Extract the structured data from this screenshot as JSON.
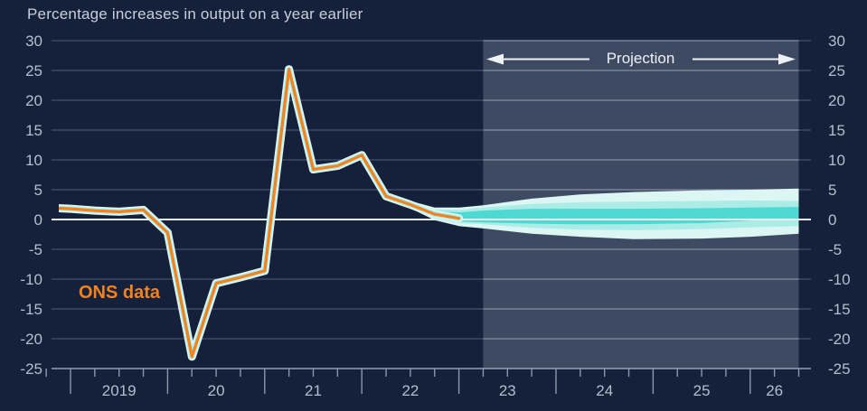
{
  "title": "Percentage increases in output on a year earlier",
  "labels": {
    "ons": "ONS data",
    "projection": "Projection"
  },
  "colors": {
    "background": "#15213a",
    "projection_region": "rgba(210,222,240,0.22)",
    "grid": "#46526c",
    "grid_in_projection": "rgba(240,245,250,0.38)",
    "zero_line": "#eef2f7",
    "axis_line": "#95a0b2",
    "tick_color": "#8d98aa",
    "axis_text": "#b4bfce",
    "title_text": "#c7cfdc",
    "ons_line": "#f5821e",
    "fan_outer": "#dbf6f3",
    "fan_mid": "#abece7",
    "fan_core": "#4ed9d2",
    "arrow": "#eef2f7"
  },
  "chart_data": {
    "type": "line",
    "title": "Percentage increases in output on a year earlier",
    "ylabel": "Percentage increase in output on a year earlier",
    "ylim": [
      -25,
      30
    ],
    "grid": true,
    "y_axis": {
      "ticks": [
        30,
        25,
        20,
        15,
        10,
        5,
        0,
        -5,
        -10,
        -15,
        -20,
        -25
      ],
      "sides": [
        "left",
        "right"
      ]
    },
    "x_axis": {
      "quarter_tick_start": 2018.75,
      "quarter_tick_end": 2026.5,
      "labels": [
        "2019",
        "20",
        "21",
        "22",
        "23",
        "24",
        "25",
        "26"
      ],
      "label_positions": [
        2019.5,
        2020.5,
        2021.5,
        2022.5,
        2023.5,
        2024.5,
        2025.5,
        2026.25
      ]
    },
    "series": [
      {
        "name": "ONS data",
        "x": [
          2018.75,
          2019.0,
          2019.25,
          2019.5,
          2019.75,
          2020.0,
          2020.25,
          2020.5,
          2020.75,
          2021.0,
          2021.25,
          2021.5,
          2021.75,
          2022.0,
          2022.25,
          2022.5,
          2022.75,
          2023.0
        ],
        "values": [
          2.0,
          1.8,
          1.5,
          1.3,
          1.6,
          -2.2,
          -23.0,
          -10.7,
          -9.7,
          -8.6,
          25.2,
          8.4,
          9.0,
          10.8,
          3.9,
          2.5,
          0.9,
          0.2
        ]
      }
    ],
    "projection": {
      "label": "Projection",
      "start_year": 2023.25,
      "end_year": 2026.5,
      "fan": {
        "x": [
          2022.5,
          2022.75,
          2023.0,
          2023.25,
          2023.75,
          2024.25,
          2024.8,
          2025.5,
          2026.0,
          2026.5
        ],
        "outer_top": [
          3.1,
          2.0,
          2.0,
          2.4,
          3.5,
          4.2,
          4.6,
          4.9,
          5.0,
          5.2
        ],
        "outer_bottom": [
          1.9,
          -0.1,
          -1.1,
          -1.5,
          -2.4,
          -2.9,
          -3.3,
          -3.2,
          -2.9,
          -2.4
        ],
        "mid_top": [
          2.9,
          1.7,
          1.6,
          2.0,
          2.6,
          2.9,
          3.0,
          3.1,
          3.2,
          3.1
        ],
        "mid_bottom": [
          2.1,
          0.1,
          -0.6,
          -0.8,
          -1.4,
          -1.7,
          -1.8,
          -1.6,
          -1.3,
          -1.1
        ],
        "core_top": [
          2.75,
          1.4,
          1.2,
          1.5,
          1.8,
          1.8,
          1.8,
          1.9,
          2.0,
          2.1
        ],
        "core_bottom": [
          2.3,
          0.4,
          -0.3,
          -0.5,
          -0.7,
          -0.8,
          -0.8,
          -0.6,
          -0.2,
          0.1
        ]
      }
    }
  }
}
